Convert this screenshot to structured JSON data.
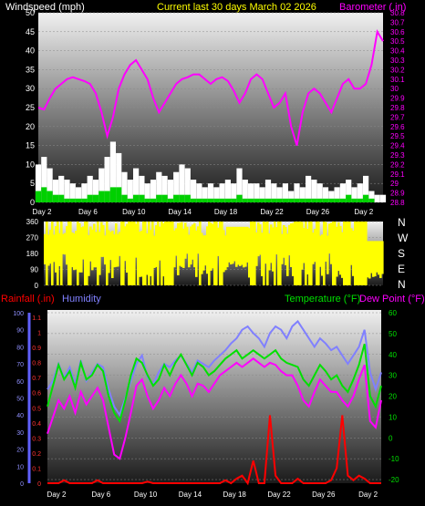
{
  "header": {
    "left": "Windspeed (mph)",
    "center": "Current last 30 days March 02 2026",
    "right": "Barometer (.in)"
  },
  "direction_labels": [
    "N",
    "W",
    "S",
    "E",
    "N"
  ],
  "bottom_header": {
    "rain": "Rainfall (.in)",
    "humidity": "Humidity",
    "temp": "Temperature (°F)",
    "dew": "Dew Point (°F)"
  },
  "colors": {
    "wind_gust": "#ffffff",
    "wind_avg": "#00d000",
    "barometer": "#ff00ff",
    "direction": "#ffff00",
    "rain": "#ff0000",
    "humidity": "#8080ff",
    "temperature": "#00e000",
    "dewpoint": "#ff00ff",
    "center_title": "#ffff00",
    "baro_axis": "#ff00ff"
  },
  "chart_data": [
    {
      "type": "line",
      "name": "wind-barometer",
      "x_ticks": [
        "Day 2",
        "Day 6",
        "Day 10",
        "Day 14",
        "Day 18",
        "Day 22",
        "Day 26",
        "Day 2"
      ],
      "xlim": [
        0,
        30
      ],
      "y_left": {
        "ticks": [
          0,
          5,
          10,
          15,
          20,
          25,
          30,
          35,
          40,
          45,
          50
        ],
        "lim": [
          0,
          50
        ]
      },
      "y_right": {
        "ticks": [
          "28.8",
          "28.9",
          "29",
          "29.1",
          "29.2",
          "29.3",
          "29.4",
          "29.5",
          "29.6",
          "29.7",
          "29.8",
          "29.9",
          "30",
          "30.1",
          "30.2",
          "30.3",
          "30.4",
          "30.5",
          "30.6",
          "30.7",
          "30.8"
        ],
        "lim": [
          28.8,
          30.8
        ]
      },
      "series": [
        {
          "key": "gust",
          "x": [
            0,
            0.5,
            1,
            1.5,
            2,
            2.5,
            3,
            3.5,
            4,
            4.5,
            5,
            5.5,
            6,
            6.5,
            7,
            7.5,
            8,
            8.5,
            9,
            9.5,
            10,
            10.5,
            11,
            11.5,
            12,
            12.5,
            13,
            13.5,
            14,
            14.5,
            15,
            15.5,
            16,
            16.5,
            17,
            17.5,
            18,
            18.5,
            19,
            19.5,
            20,
            20.5,
            21,
            21.5,
            22,
            22.5,
            23,
            23.5,
            24,
            24.5,
            25,
            25.5,
            26,
            26.5,
            27,
            27.5,
            28,
            28.5,
            29,
            29.5,
            30
          ],
          "y": [
            10,
            12,
            9,
            6,
            7,
            6,
            5,
            4,
            5,
            7,
            6,
            9,
            12,
            16,
            13,
            8,
            6,
            9,
            7,
            5,
            6,
            8,
            7,
            6,
            8,
            10,
            9,
            6,
            5,
            4,
            5,
            4,
            5,
            6,
            5,
            9,
            6,
            5,
            5,
            4,
            6,
            5,
            4,
            5,
            3,
            5,
            4,
            7,
            6,
            5,
            4,
            3,
            4,
            5,
            6,
            4,
            5,
            7,
            3,
            2,
            2
          ]
        },
        {
          "key": "avg",
          "x": [
            0,
            0.5,
            1,
            1.5,
            2,
            2.5,
            3,
            3.5,
            4,
            4.5,
            5,
            5.5,
            6,
            6.5,
            7,
            7.5,
            8,
            8.5,
            9,
            9.5,
            10,
            10.5,
            11,
            11.5,
            12,
            12.5,
            13,
            13.5,
            14,
            14.5,
            15,
            15.5,
            16,
            16.5,
            17,
            17.5,
            18,
            18.5,
            19,
            19.5,
            20,
            20.5,
            21,
            21.5,
            22,
            22.5,
            23,
            23.5,
            24,
            24.5,
            25,
            25.5,
            26,
            26.5,
            27,
            27.5,
            28,
            28.5,
            29,
            29.5,
            30
          ],
          "y": [
            3,
            4,
            3,
            2,
            2,
            1,
            1,
            1,
            1,
            2,
            2,
            3,
            3,
            4,
            4,
            2,
            1,
            2,
            2,
            1,
            1,
            2,
            2,
            1,
            2,
            2,
            2,
            1,
            1,
            1,
            1,
            1,
            1,
            1,
            1,
            2,
            1,
            1,
            1,
            1,
            1,
            1,
            1,
            1,
            1,
            1,
            1,
            1,
            1,
            1,
            1,
            1,
            1,
            1,
            2,
            1,
            1,
            2,
            1,
            0,
            0
          ]
        },
        {
          "key": "baro",
          "x": [
            0,
            0.5,
            1,
            1.5,
            2,
            2.5,
            3,
            3.5,
            4,
            4.5,
            5,
            5.5,
            6,
            6.5,
            7,
            7.5,
            8,
            8.5,
            9,
            9.5,
            10,
            10.5,
            11,
            11.5,
            12,
            12.5,
            13,
            13.5,
            14,
            14.5,
            15,
            15.5,
            16,
            16.5,
            17,
            17.5,
            18,
            18.5,
            19,
            19.5,
            20,
            20.5,
            21,
            21.5,
            22,
            22.5,
            23,
            23.5,
            24,
            24.5,
            25,
            25.5,
            26,
            26.5,
            27,
            27.5,
            28,
            28.5,
            29,
            29.5,
            30
          ],
          "y": [
            29.8,
            29.78,
            29.9,
            30.0,
            30.05,
            30.1,
            30.12,
            30.1,
            30.08,
            30.05,
            29.95,
            29.75,
            29.5,
            29.7,
            30.0,
            30.15,
            30.25,
            30.3,
            30.2,
            30.1,
            29.9,
            29.75,
            29.85,
            29.95,
            30.05,
            30.1,
            30.12,
            30.15,
            30.15,
            30.1,
            30.05,
            30.1,
            30.12,
            30.08,
            29.98,
            29.85,
            29.95,
            30.1,
            30.15,
            30.1,
            29.95,
            29.8,
            29.85,
            29.95,
            29.6,
            29.4,
            29.75,
            29.95,
            30.0,
            29.95,
            29.85,
            29.75,
            29.9,
            30.05,
            30.1,
            30.0,
            30.0,
            30.05,
            30.25,
            30.6,
            30.5
          ]
        }
      ]
    },
    {
      "type": "area",
      "name": "wind-direction",
      "x_ticks": [
        "Day 2",
        "Day 6",
        "Day 10",
        "Day 14",
        "Day 18",
        "Day 22",
        "Day 26",
        "Day 2"
      ],
      "xlim": [
        0,
        30
      ],
      "y_ticks": [
        0,
        90,
        180,
        270,
        360
      ],
      "ylim": [
        0,
        360
      ]
    },
    {
      "type": "line",
      "name": "rain-humidity-temp",
      "x_ticks": [
        "Day 2",
        "Day 6",
        "Day 10",
        "Day 14",
        "Day 18",
        "Day 22",
        "Day 26",
        "Day 2"
      ],
      "xlim": [
        0,
        30
      ],
      "y_rain": {
        "ticks": [
          "0",
          "0.1",
          "0.2",
          "0.3",
          "0.4",
          "0.5",
          "0.6",
          "0.7",
          "0.8",
          "0.9",
          "1",
          "1.1"
        ],
        "lim": [
          0,
          1.1
        ]
      },
      "y_hum": {
        "ticks": [
          0,
          10,
          20,
          30,
          40,
          50,
          60,
          70,
          80,
          90,
          100
        ],
        "lim": [
          0,
          100
        ]
      },
      "y_temp": {
        "ticks": [
          -20,
          -10,
          0,
          10,
          20,
          30,
          40,
          50,
          60
        ],
        "lim": [
          -20,
          60
        ]
      },
      "series": [
        {
          "key": "humidity",
          "x": [
            0,
            0.5,
            1,
            1.5,
            2,
            2.5,
            3,
            3.5,
            4,
            4.5,
            5,
            5.5,
            6,
            6.5,
            7,
            7.5,
            8,
            8.5,
            9,
            9.5,
            10,
            10.5,
            11,
            11.5,
            12,
            12.5,
            13,
            13.5,
            14,
            14.5,
            15,
            15.5,
            16,
            16.5,
            17,
            17.5,
            18,
            18.5,
            19,
            19.5,
            20,
            20.5,
            21,
            21.5,
            22,
            22.5,
            23,
            23.5,
            24,
            24.5,
            25,
            25.5,
            26,
            26.5,
            27,
            27.5,
            28,
            28.5,
            29,
            29.5,
            30
          ],
          "y": [
            55,
            60,
            70,
            62,
            68,
            58,
            72,
            60,
            65,
            70,
            68,
            55,
            45,
            40,
            50,
            60,
            70,
            75,
            62,
            58,
            65,
            70,
            68,
            72,
            75,
            70,
            65,
            72,
            70,
            68,
            72,
            75,
            78,
            82,
            85,
            90,
            92,
            88,
            85,
            80,
            88,
            92,
            90,
            85,
            92,
            95,
            90,
            85,
            80,
            85,
            82,
            78,
            80,
            75,
            70,
            75,
            80,
            90,
            65,
            55,
            65
          ]
        },
        {
          "key": "temperature",
          "x": [
            0,
            0.5,
            1,
            1.5,
            2,
            2.5,
            3,
            3.5,
            4,
            4.5,
            5,
            5.5,
            6,
            6.5,
            7,
            7.5,
            8,
            8.5,
            9,
            9.5,
            10,
            10.5,
            11,
            11.5,
            12,
            12.5,
            13,
            13.5,
            14,
            14.5,
            15,
            15.5,
            16,
            16.5,
            17,
            17.5,
            18,
            18.5,
            19,
            19.5,
            20,
            20.5,
            21,
            21.5,
            22,
            22.5,
            23,
            23.5,
            24,
            24.5,
            25,
            25.5,
            26,
            26.5,
            27,
            27.5,
            28,
            28.5,
            29,
            29.5,
            30
          ],
          "y": [
            15,
            25,
            35,
            28,
            32,
            24,
            36,
            28,
            30,
            35,
            32,
            20,
            12,
            8,
            18,
            30,
            38,
            36,
            30,
            25,
            28,
            35,
            30,
            36,
            40,
            35,
            30,
            36,
            34,
            30,
            32,
            35,
            38,
            40,
            42,
            38,
            40,
            42,
            40,
            38,
            40,
            42,
            38,
            36,
            35,
            34,
            28,
            25,
            30,
            35,
            32,
            28,
            30,
            25,
            22,
            28,
            35,
            45,
            20,
            15,
            25
          ]
        },
        {
          "key": "dewpoint",
          "x": [
            0,
            0.5,
            1,
            1.5,
            2,
            2.5,
            3,
            3.5,
            4,
            4.5,
            5,
            5.5,
            6,
            6.5,
            7,
            7.5,
            8,
            8.5,
            9,
            9.5,
            10,
            10.5,
            11,
            11.5,
            12,
            12.5,
            13,
            13.5,
            14,
            14.5,
            15,
            15.5,
            16,
            16.5,
            17,
            17.5,
            18,
            18.5,
            19,
            19.5,
            20,
            20.5,
            21,
            21.5,
            22,
            22.5,
            23,
            23.5,
            24,
            24.5,
            25,
            25.5,
            26,
            26.5,
            27,
            27.5,
            28,
            28.5,
            29,
            29.5,
            30
          ],
          "y": [
            2,
            10,
            18,
            14,
            20,
            12,
            22,
            16,
            20,
            24,
            18,
            5,
            -8,
            -10,
            0,
            12,
            25,
            28,
            20,
            14,
            18,
            24,
            20,
            26,
            30,
            26,
            20,
            26,
            25,
            22,
            26,
            30,
            32,
            34,
            36,
            34,
            36,
            38,
            36,
            34,
            36,
            35,
            32,
            30,
            30,
            25,
            18,
            15,
            22,
            28,
            25,
            22,
            22,
            18,
            15,
            20,
            28,
            35,
            8,
            5,
            18
          ]
        },
        {
          "key": "rain",
          "x": [
            0,
            0.5,
            1,
            1.5,
            2,
            2.5,
            3,
            3.5,
            4,
            4.5,
            5,
            5.5,
            6,
            6.5,
            7,
            7.5,
            8,
            8.5,
            9,
            9.5,
            10,
            10.5,
            11,
            11.5,
            12,
            12.5,
            13,
            13.5,
            14,
            14.5,
            15,
            15.5,
            16,
            16.5,
            17,
            17.5,
            18,
            18.5,
            19,
            19.5,
            20,
            20.5,
            21,
            21.5,
            22,
            22.5,
            23,
            23.5,
            24,
            24.5,
            25,
            25.5,
            26,
            26.5,
            27,
            27.5,
            28,
            28.5,
            29,
            29.5,
            30
          ],
          "y": [
            0,
            0,
            0,
            0.02,
            0,
            0,
            0,
            0,
            0,
            0.02,
            0,
            0,
            0,
            0,
            0,
            0,
            0,
            0,
            0.01,
            0,
            0,
            0,
            0,
            0,
            0,
            0,
            0,
            0,
            0,
            0,
            0,
            0,
            0.02,
            0,
            0.03,
            0.05,
            0,
            0.15,
            0,
            0,
            0.45,
            0.05,
            0,
            0,
            0,
            0.03,
            0,
            0,
            0,
            0,
            0,
            0.02,
            0.1,
            0.45,
            0.05,
            0.02,
            0.05,
            0.03,
            0,
            0,
            0
          ]
        }
      ]
    }
  ]
}
